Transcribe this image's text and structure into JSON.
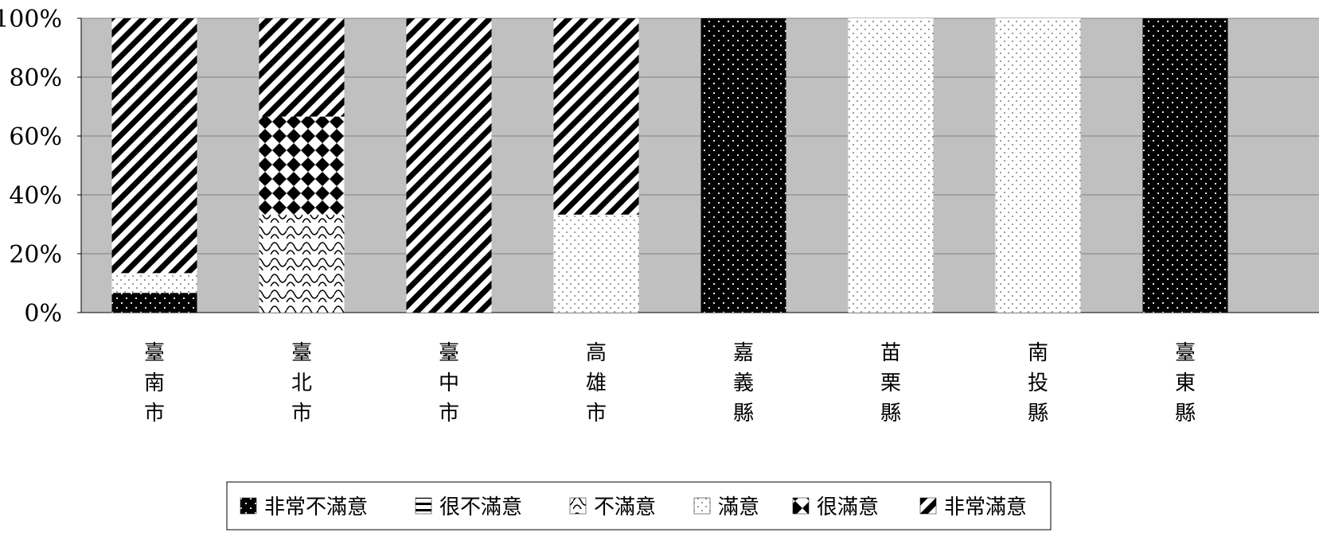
{
  "chart_data": {
    "type": "bar",
    "stacked": true,
    "percent": true,
    "categories": [
      "臺南市",
      "臺北市",
      "臺中市",
      "高雄市",
      "嘉義縣",
      "苗栗縣",
      "南投縣",
      "臺東縣"
    ],
    "series": [
      {
        "name": "非常不滿意",
        "pattern": "dots-on-black",
        "values": [
          6.7,
          0,
          0,
          0,
          100,
          0,
          0,
          100
        ]
      },
      {
        "name": "很不滿意",
        "pattern": "horizontal-lines",
        "values": [
          0,
          0,
          0,
          0,
          0,
          0,
          0,
          0
        ]
      },
      {
        "name": "不滿意",
        "pattern": "wave",
        "values": [
          0,
          33.3,
          0,
          0,
          0,
          0,
          0,
          0
        ]
      },
      {
        "name": "滿意",
        "pattern": "sparse-dots",
        "values": [
          6.7,
          0,
          0,
          33.3,
          0,
          100,
          100,
          0
        ]
      },
      {
        "name": "很滿意",
        "pattern": "diamonds",
        "values": [
          0,
          33.3,
          0,
          0,
          0,
          0,
          0,
          0
        ]
      },
      {
        "name": "非常滿意",
        "pattern": "diagonal-stripes",
        "values": [
          86.6,
          33.4,
          100,
          66.7,
          0,
          0,
          0,
          0
        ]
      }
    ],
    "yticks": [
      "0%",
      "20%",
      "40%",
      "60%",
      "80%",
      "100%"
    ],
    "ylim": [
      0,
      100
    ],
    "grid": true,
    "plot_background": "#c0c0c0",
    "legend_position": "bottom"
  }
}
